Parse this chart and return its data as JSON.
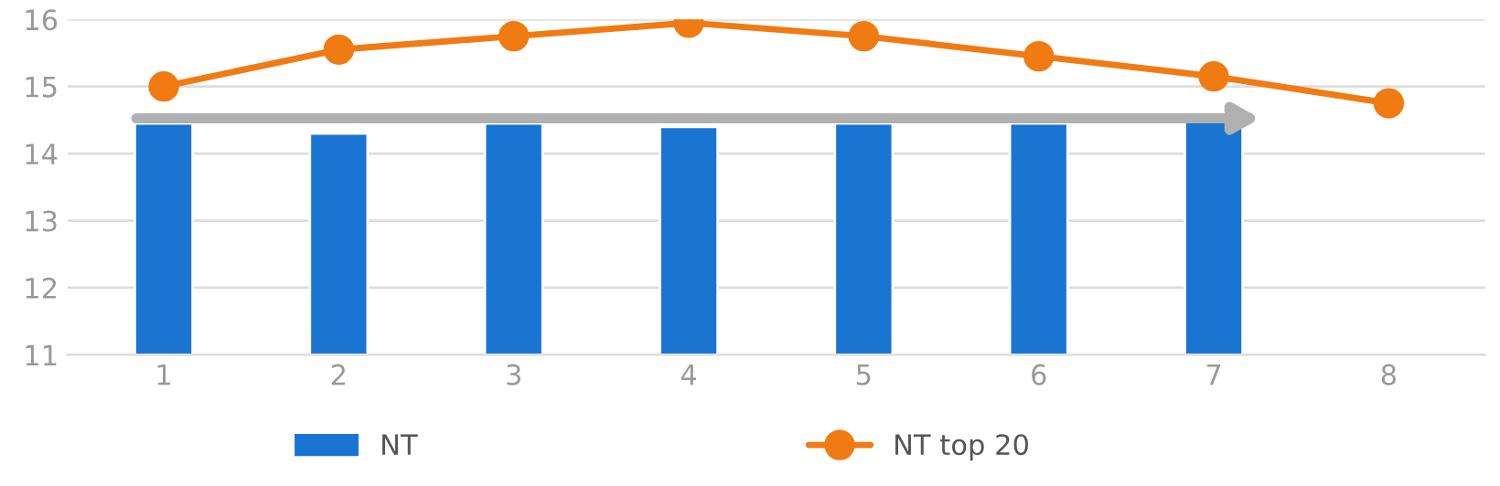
{
  "chart_data": {
    "type": "bar",
    "categories": [
      "1",
      "2",
      "3",
      "4",
      "5",
      "6",
      "7",
      "8"
    ],
    "series": [
      {
        "name": "NT",
        "color": "#1a75d2",
        "values": [
          14.45,
          14.3,
          14.45,
          14.4,
          14.45,
          14.45,
          14.5,
          null
        ]
      },
      {
        "name": "NT top 20",
        "type": "line",
        "color": "#f07b12",
        "values": [
          15.0,
          15.55,
          15.75,
          15.95,
          15.75,
          15.45,
          15.15,
          14.75
        ]
      }
    ],
    "ylim": [
      11,
      16
    ],
    "yticks": [
      11,
      12,
      13,
      14,
      15,
      16
    ],
    "grid": "y",
    "legend": "bottom",
    "marker": "circle",
    "line_style": "solid"
  }
}
